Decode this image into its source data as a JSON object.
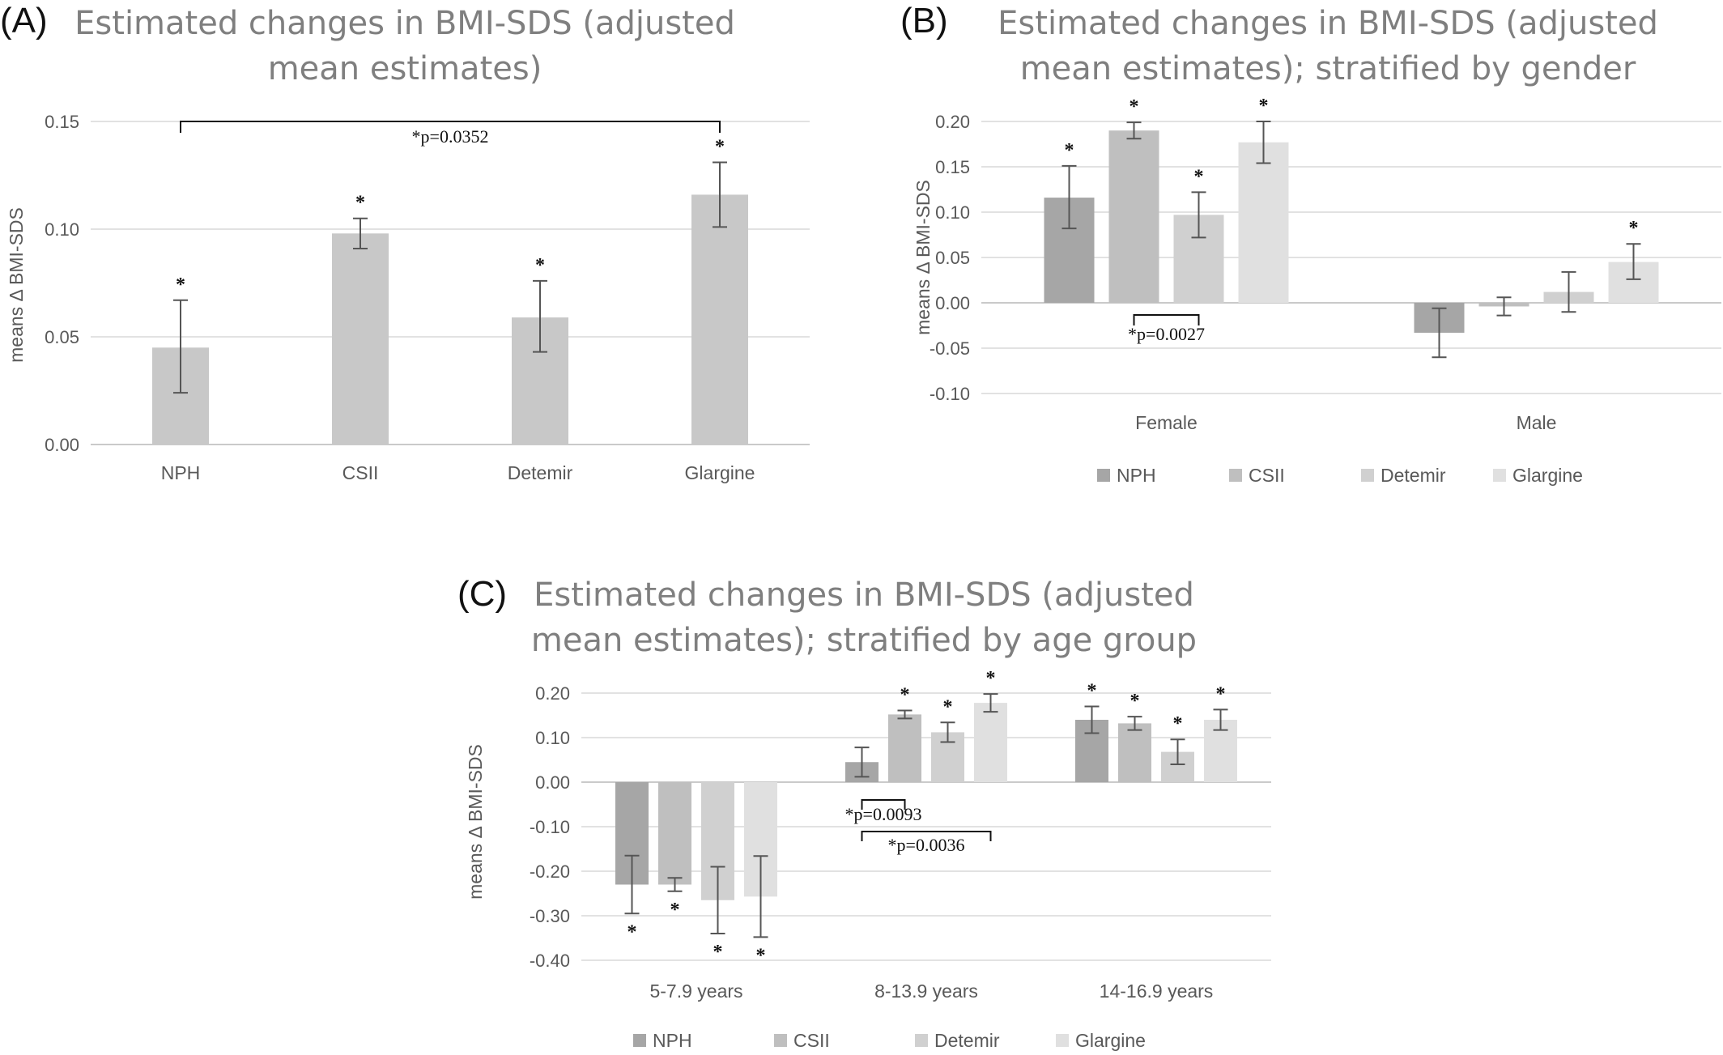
{
  "chart_data": [
    {
      "panel": "(A)",
      "type": "bar",
      "title": "Estimated changes in BMI-SDS (adjusted mean estimates)",
      "ylabel": "means Δ BMI-SDS",
      "categories": [
        "NPH",
        "CSII",
        "Detemir",
        "Glargine"
      ],
      "values": [
        0.045,
        0.098,
        0.059,
        0.116
      ],
      "error_low": [
        0.024,
        0.091,
        0.043,
        0.101
      ],
      "error_high": [
        0.067,
        0.105,
        0.076,
        0.131
      ],
      "significant": [
        true,
        true,
        true,
        true
      ],
      "ylim": [
        0,
        0.15
      ],
      "yticks": [
        "0.00",
        "0.05",
        "0.10",
        "0.15"
      ],
      "grid": true,
      "color": "#c8c8c8",
      "star_label": "*",
      "comparisons": [
        {
          "from": 0,
          "to": 3,
          "label": "*p=0.0352"
        }
      ]
    },
    {
      "panel": "(B)",
      "type": "bar",
      "title": "Estimated changes in BMI-SDS (adjusted mean estimates); stratified by gender",
      "ylabel": "means Δ BMI-SDS",
      "categories": [
        "Female",
        "Male"
      ],
      "series": [
        {
          "name": "NPH",
          "color": "#a6a6a6",
          "values": [
            0.116,
            -0.033
          ],
          "error_low": [
            0.082,
            -0.06
          ],
          "error_high": [
            0.151,
            -0.006
          ],
          "significant": [
            true,
            false
          ]
        },
        {
          "name": "CSII",
          "color": "#bfbfbf",
          "values": [
            0.19,
            -0.004
          ],
          "error_low": [
            0.181,
            -0.014
          ],
          "error_high": [
            0.199,
            0.006
          ],
          "significant": [
            true,
            false
          ]
        },
        {
          "name": "Detemir",
          "color": "#d0d0d0",
          "values": [
            0.097,
            0.012
          ],
          "error_low": [
            0.072,
            -0.01
          ],
          "error_high": [
            0.122,
            0.034
          ],
          "significant": [
            true,
            false
          ]
        },
        {
          "name": "Glargine",
          "color": "#e0e0e0",
          "values": [
            0.177,
            0.045
          ],
          "error_low": [
            0.154,
            0.026
          ],
          "error_high": [
            0.2,
            0.065
          ],
          "significant": [
            true,
            true
          ]
        }
      ],
      "ylim": [
        -0.1,
        0.2
      ],
      "yticks": [
        "-0.10",
        "-0.05",
        "0.00",
        "0.05",
        "0.10",
        "0.15",
        "0.20"
      ],
      "grid": true,
      "legend": "bottom",
      "star_label": "*",
      "comparisons": [
        {
          "category": 0,
          "from": 1,
          "to": 2,
          "label": "*p=0.0027"
        }
      ]
    },
    {
      "panel": "(C)",
      "type": "bar",
      "title": "Estimated changes in BMI-SDS (adjusted mean estimates); stratified by age group",
      "ylabel": "means Δ BMI-SDS",
      "categories": [
        "5-7.9 years",
        "8-13.9 years",
        "14-16.9 years"
      ],
      "series": [
        {
          "name": "NPH",
          "color": "#a6a6a6",
          "values": [
            -0.23,
            0.045,
            0.14
          ],
          "error_low": [
            -0.295,
            0.012,
            0.11
          ],
          "error_high": [
            -0.165,
            0.078,
            0.17
          ],
          "significant": [
            true,
            false,
            true
          ]
        },
        {
          "name": "CSII",
          "color": "#bfbfbf",
          "values": [
            -0.23,
            0.152,
            0.132
          ],
          "error_low": [
            -0.245,
            0.143,
            0.117
          ],
          "error_high": [
            -0.215,
            0.161,
            0.147
          ],
          "significant": [
            true,
            true,
            true
          ]
        },
        {
          "name": "Detemir",
          "color": "#d0d0d0",
          "values": [
            -0.265,
            0.112,
            0.068
          ],
          "error_low": [
            -0.34,
            0.09,
            0.04
          ],
          "error_high": [
            -0.19,
            0.134,
            0.096
          ],
          "significant": [
            true,
            true,
            true
          ]
        },
        {
          "name": "Glargine",
          "color": "#e0e0e0",
          "values": [
            -0.257,
            0.178,
            0.14
          ],
          "error_low": [
            -0.348,
            0.158,
            0.117
          ],
          "error_high": [
            -0.166,
            0.198,
            0.163
          ],
          "significant": [
            true,
            true,
            true
          ]
        }
      ],
      "ylim": [
        -0.4,
        0.2
      ],
      "yticks": [
        "-0.40",
        "-0.30",
        "-0.20",
        "-0.10",
        "0.00",
        "0.10",
        "0.20"
      ],
      "grid": true,
      "legend": "bottom",
      "star_label": "*",
      "comparisons": [
        {
          "category": 1,
          "from": 0,
          "to": 1,
          "label": "*p=0.0093"
        },
        {
          "category": 1,
          "from": 0,
          "to": 3,
          "label": "*p=0.0036"
        }
      ]
    }
  ]
}
